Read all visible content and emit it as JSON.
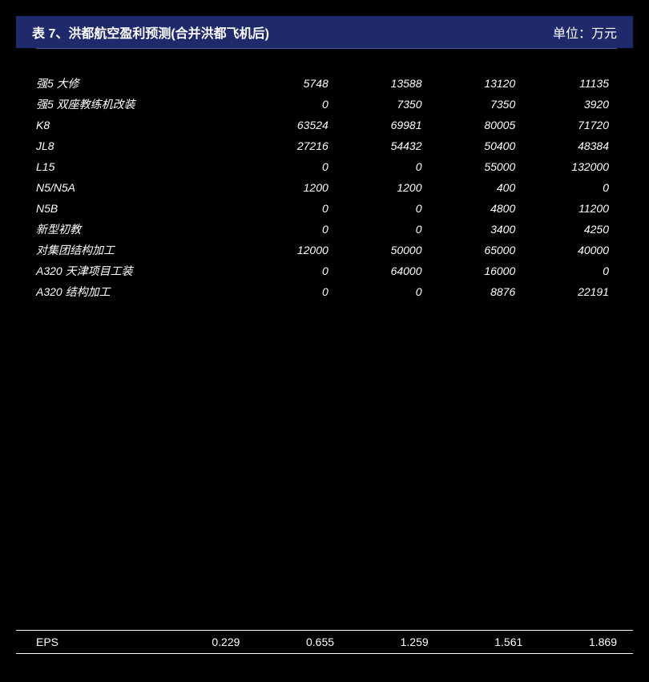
{
  "header": {
    "title": "表 7、洪都航空盈利预测(合并洪都飞机后)",
    "unit": "单位：万元"
  },
  "table": {
    "rows": [
      {
        "label": "强5 大修",
        "v1": "5748",
        "v2": "13588",
        "v3": "13120",
        "v4": "11135"
      },
      {
        "label": "强5 双座教练机改装",
        "v1": "0",
        "v2": "7350",
        "v3": "7350",
        "v4": "3920"
      },
      {
        "label": "K8",
        "v1": "63524",
        "v2": "69981",
        "v3": "80005",
        "v4": "71720"
      },
      {
        "label": "JL8",
        "v1": "27216",
        "v2": "54432",
        "v3": "50400",
        "v4": "48384"
      },
      {
        "label": "L15",
        "v1": "0",
        "v2": "0",
        "v3": "55000",
        "v4": "132000"
      },
      {
        "label": "N5/N5A",
        "v1": "1200",
        "v2": "1200",
        "v3": "400",
        "v4": "0"
      },
      {
        "label": "N5B",
        "v1": "0",
        "v2": "0",
        "v3": "4800",
        "v4": "11200"
      },
      {
        "label": "新型初教",
        "v1": "0",
        "v2": "0",
        "v3": "3400",
        "v4": "4250"
      },
      {
        "label": "对集团结构加工",
        "v1": "12000",
        "v2": "50000",
        "v3": "65000",
        "v4": "40000"
      },
      {
        "label": "A320 天津项目工装",
        "v1": "0",
        "v2": "64000",
        "v3": "16000",
        "v4": "0"
      },
      {
        "label": "A320 结构加工",
        "v1": "0",
        "v2": "0",
        "v3": "8876",
        "v4": "22191"
      }
    ]
  },
  "eps": {
    "label": "EPS",
    "v1": "0.229",
    "v2": "0.655",
    "v3": "1.259",
    "v4": "1.561",
    "v5": "1.869"
  },
  "colors": {
    "background": "#000000",
    "header_bg": "#1e2a6b",
    "text": "#ffffff",
    "border": "#4a5a9e"
  }
}
